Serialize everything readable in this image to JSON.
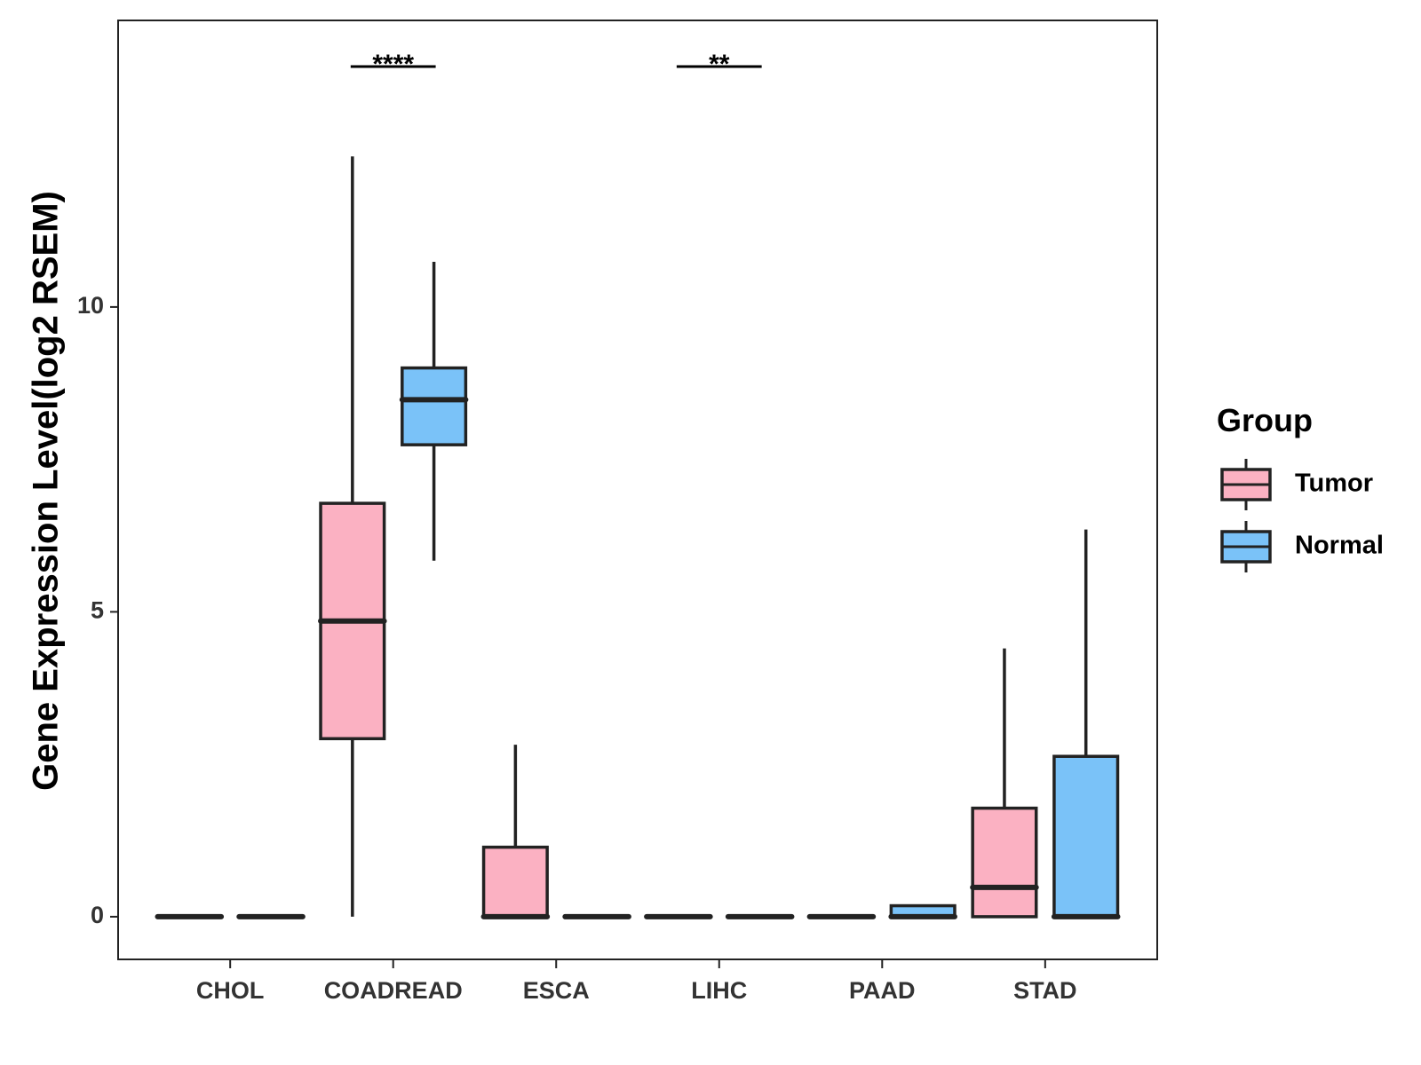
{
  "chart_data": {
    "type": "boxplot",
    "title": "",
    "xlabel": "",
    "ylabel": "Gene Expression Level(log2 RSEM)",
    "ylim": [
      -0.7,
      14.7
    ],
    "yticks": [
      0,
      5,
      10
    ],
    "categories": [
      "CHOL",
      "COADREAD",
      "ESCA",
      "LIHC",
      "PAAD",
      "STAD"
    ],
    "legend": {
      "title": "Group",
      "position": "right"
    },
    "series": [
      {
        "name": "Tumor",
        "color": "#FBB1C2",
        "boxes": [
          {
            "category": "CHOL",
            "whisker_low": 0,
            "q1": 0,
            "median": 0,
            "q3": 0,
            "whisker_high": 0
          },
          {
            "category": "COADREAD",
            "whisker_low": 0,
            "q1": 2.92,
            "median": 4.85,
            "q3": 6.78,
            "whisker_high": 12.47
          },
          {
            "category": "ESCA",
            "whisker_low": 0,
            "q1": 0,
            "median": 0,
            "q3": 1.14,
            "whisker_high": 2.82
          },
          {
            "category": "LIHC",
            "whisker_low": 0,
            "q1": 0,
            "median": 0,
            "q3": 0,
            "whisker_high": 0
          },
          {
            "category": "PAAD",
            "whisker_low": 0,
            "q1": 0,
            "median": 0,
            "q3": 0,
            "whisker_high": 0
          },
          {
            "category": "STAD",
            "whisker_low": 0,
            "q1": 0,
            "median": 0.48,
            "q3": 1.78,
            "whisker_high": 4.4
          }
        ]
      },
      {
        "name": "Normal",
        "color": "#7AC2F8",
        "boxes": [
          {
            "category": "CHOL",
            "whisker_low": 0,
            "q1": 0,
            "median": 0,
            "q3": 0,
            "whisker_high": 0
          },
          {
            "category": "COADREAD",
            "whisker_low": 5.84,
            "q1": 7.74,
            "median": 8.48,
            "q3": 9.0,
            "whisker_high": 10.74
          },
          {
            "category": "ESCA",
            "whisker_low": 0,
            "q1": 0,
            "median": 0,
            "q3": 0,
            "whisker_high": 0
          },
          {
            "category": "LIHC",
            "whisker_low": 0,
            "q1": 0,
            "median": 0,
            "q3": 0,
            "whisker_high": 0
          },
          {
            "category": "PAAD",
            "whisker_low": 0,
            "q1": 0,
            "median": 0,
            "q3": 0.18,
            "whisker_high": 0.18
          },
          {
            "category": "STAD",
            "whisker_low": 0,
            "q1": 0,
            "median": 0,
            "q3": 2.63,
            "whisker_high": 6.35
          }
        ]
      }
    ],
    "significance": [
      {
        "category": "COADREAD",
        "label": "****"
      },
      {
        "category": "LIHC",
        "label": "**"
      }
    ]
  }
}
